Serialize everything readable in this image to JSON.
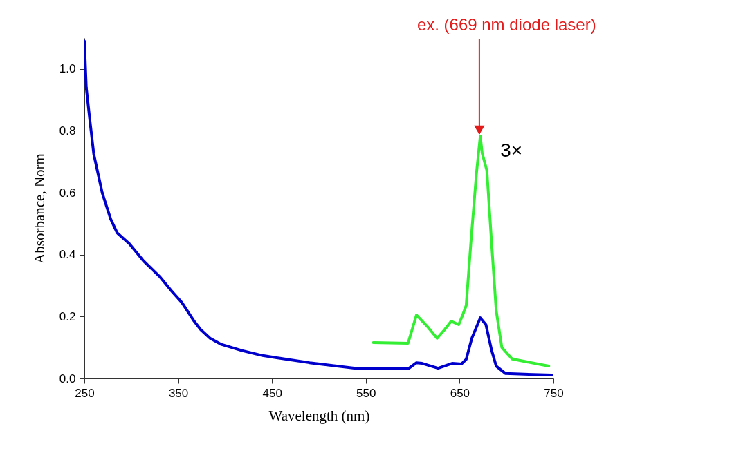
{
  "chart_data": {
    "type": "line",
    "xlabel": "Wavelength (nm)",
    "ylabel": "Absorbance, Norm",
    "xlim": [
      250,
      750
    ],
    "ylim": [
      0,
      1.1
    ],
    "xticks": [
      250,
      350,
      450,
      550,
      650,
      750
    ],
    "yticks": [
      {
        "value": 0,
        "label": "0.0"
      },
      {
        "value": 0.2,
        "label": "0.2"
      },
      {
        "value": 0.4,
        "label": "0.4"
      },
      {
        "value": 0.6,
        "label": "0.6"
      },
      {
        "value": 0.8,
        "label": "0.8"
      },
      {
        "value": 1,
        "label": "1.0"
      }
    ],
    "grid": false,
    "series": [
      {
        "color": "#0000cc",
        "x": [
          250,
          252,
          256,
          260,
          269,
          278,
          285,
          298,
          313,
          330,
          342,
          354,
          367,
          374,
          384,
          396,
          418,
          440,
          455,
          490,
          539,
          595,
          604,
          610,
          627,
          642,
          652,
          657,
          663,
          672,
          678,
          684,
          689,
          699,
          748
        ],
        "values": [
          1.09,
          0.94,
          0.83,
          0.725,
          0.6,
          0.515,
          0.47,
          0.435,
          0.38,
          0.33,
          0.286,
          0.245,
          0.185,
          0.158,
          0.13,
          0.11,
          0.09,
          0.074,
          0.067,
          0.051,
          0.033,
          0.031,
          0.051,
          0.049,
          0.033,
          0.049,
          0.047,
          0.062,
          0.13,
          0.196,
          0.174,
          0.092,
          0.04,
          0.016,
          0.011
        ]
      },
      {
        "name": "3×",
        "color": "#33ee33",
        "x": [
          558,
          595,
          604,
          615,
          626,
          634,
          641,
          649,
          653,
          657,
          662,
          668,
          672,
          674,
          679,
          684,
          689,
          695,
          706,
          745
        ],
        "values": [
          0.116,
          0.114,
          0.205,
          0.17,
          0.13,
          0.158,
          0.185,
          0.174,
          0.203,
          0.236,
          0.44,
          0.665,
          0.783,
          0.728,
          0.672,
          0.44,
          0.219,
          0.1,
          0.063,
          0.04
        ]
      }
    ],
    "annotations": [
      {
        "text": "ex. (669 nm diode laser)",
        "x": 671,
        "y": 0.79
      }
    ]
  }
}
